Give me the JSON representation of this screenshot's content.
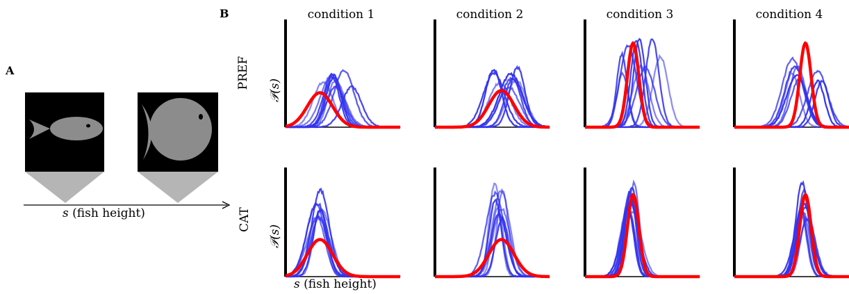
{
  "panel_a": {
    "letter": "A",
    "xlabel_var": "s",
    "xlabel_text": "(fish height)"
  },
  "panel_b": {
    "letter": "B",
    "conditions": [
      "condition 1",
      "condition 2",
      "condition 3",
      "condition 4"
    ],
    "rows": [
      "PREF",
      "CAT"
    ],
    "ylabel": "𝒫(s)",
    "xlabel_var": "s",
    "xlabel_text": "(fish height)"
  },
  "colors": {
    "model": "#ff0000",
    "subjects": "#3333ee",
    "fish": "#8c8c8c",
    "fish_box": "#000000",
    "cone": "#b5b5b5"
  },
  "chart_data": [
    {
      "type": "line",
      "row": "PREF",
      "condition": "condition 1",
      "prior": {
        "mu": 0.3,
        "sigma": 0.11,
        "peak": 0.32
      },
      "subjects": {
        "center": 0.45,
        "spread": 0.13,
        "sigma": 0.08,
        "peak": 0.5,
        "n": 9
      }
    },
    {
      "type": "line",
      "row": "PREF",
      "condition": "condition 2",
      "prior": {
        "mu": 0.58,
        "sigma": 0.11,
        "peak": 0.34
      },
      "subjects": {
        "center": 0.62,
        "spread": 0.13,
        "sigma": 0.08,
        "peak": 0.55,
        "n": 9
      }
    },
    {
      "type": "line",
      "row": "PREF",
      "condition": "condition 3",
      "prior": {
        "mu": 0.42,
        "sigma": 0.05,
        "peak": 0.78
      },
      "subjects": {
        "center": 0.5,
        "spread": 0.18,
        "sigma": 0.06,
        "peak": 0.75,
        "n": 9
      }
    },
    {
      "type": "line",
      "row": "PREF",
      "condition": "condition 4",
      "prior": {
        "mu": 0.62,
        "sigma": 0.05,
        "peak": 0.78
      },
      "subjects": {
        "center": 0.6,
        "spread": 0.17,
        "sigma": 0.07,
        "peak": 0.58,
        "n": 9
      }
    },
    {
      "type": "line",
      "row": "CAT",
      "condition": "condition 1",
      "prior": {
        "mu": 0.3,
        "sigma": 0.11,
        "peak": 0.34
      },
      "subjects": {
        "center": 0.3,
        "spread": 0.04,
        "sigma": 0.07,
        "peak": 0.75,
        "n": 9
      }
    },
    {
      "type": "line",
      "row": "CAT",
      "condition": "condition 2",
      "prior": {
        "mu": 0.58,
        "sigma": 0.11,
        "peak": 0.34
      },
      "subjects": {
        "center": 0.56,
        "spread": 0.04,
        "sigma": 0.06,
        "peak": 0.78,
        "n": 9
      }
    },
    {
      "type": "line",
      "row": "CAT",
      "condition": "condition 3",
      "prior": {
        "mu": 0.42,
        "sigma": 0.05,
        "peak": 0.75
      },
      "subjects": {
        "center": 0.4,
        "spread": 0.03,
        "sigma": 0.06,
        "peak": 0.82,
        "n": 9
      }
    },
    {
      "type": "line",
      "row": "CAT",
      "condition": "condition 4",
      "prior": {
        "mu": 0.62,
        "sigma": 0.05,
        "peak": 0.75
      },
      "subjects": {
        "center": 0.61,
        "spread": 0.03,
        "sigma": 0.06,
        "peak": 0.8,
        "n": 9
      }
    }
  ]
}
